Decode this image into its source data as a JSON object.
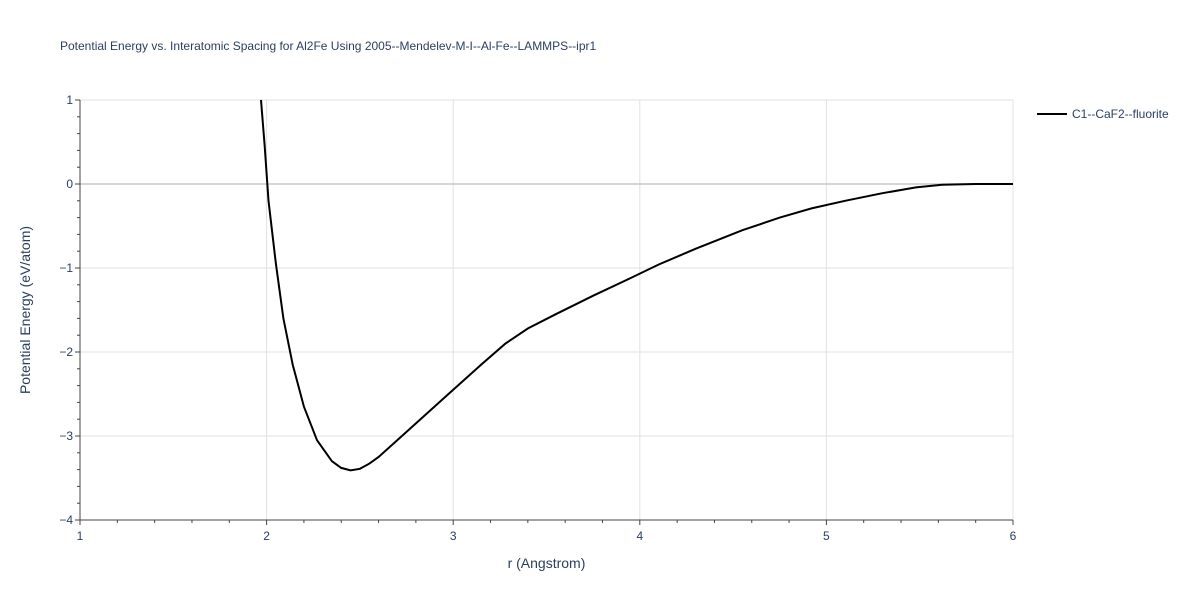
{
  "chart_data": {
    "type": "line",
    "title": "Potential Energy vs. Interatomic Spacing for Al2Fe Using 2005--Mendelev-M-I--Al-Fe--LAMMPS--ipr1",
    "xlabel": "r (Angstrom)",
    "ylabel": "Potential Energy (eV/atom)",
    "xlim": [
      1,
      6
    ],
    "ylim": [
      -4,
      1
    ],
    "x_ticks": [
      1,
      2,
      3,
      4,
      5,
      6
    ],
    "y_ticks": [
      1,
      0,
      -1,
      -2,
      -3,
      -4
    ],
    "x_tick_labels": [
      "1",
      "2",
      "3",
      "4",
      "5",
      "6"
    ],
    "y_tick_labels": [
      "1",
      "0",
      "−1",
      "−2",
      "−3",
      "−4"
    ],
    "grid": true,
    "legend_position": "top-right",
    "series": [
      {
        "name": "C1--CaF2--fluorite",
        "color": "#000000",
        "x": [
          1.97,
          1.99,
          2.01,
          2.05,
          2.09,
          2.14,
          2.2,
          2.27,
          2.35,
          2.4,
          2.45,
          2.5,
          2.55,
          2.6,
          2.7,
          2.85,
          3.0,
          3.15,
          3.28,
          3.4,
          3.55,
          3.75,
          3.95,
          4.1,
          4.3,
          4.55,
          4.75,
          4.92,
          5.1,
          5.3,
          5.48,
          5.62,
          5.8,
          6.0
        ],
        "y": [
          1.0,
          0.45,
          -0.2,
          -0.95,
          -1.6,
          -2.15,
          -2.65,
          -3.05,
          -3.3,
          -3.38,
          -3.41,
          -3.39,
          -3.33,
          -3.25,
          -3.05,
          -2.75,
          -2.45,
          -2.15,
          -1.9,
          -1.72,
          -1.55,
          -1.33,
          -1.12,
          -0.96,
          -0.77,
          -0.55,
          -0.4,
          -0.29,
          -0.2,
          -0.11,
          -0.04,
          -0.01,
          0.0,
          0.0
        ]
      }
    ]
  }
}
